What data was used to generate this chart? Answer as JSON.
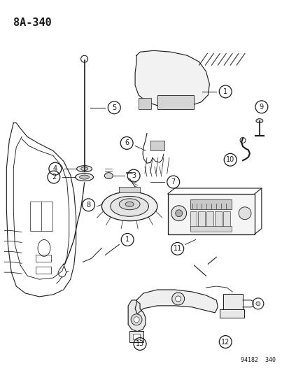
{
  "title": "8A-340",
  "watermark": "94182  340",
  "background": "#ffffff",
  "text_color": "#1a1a1a",
  "fig_width": 4.14,
  "fig_height": 5.33,
  "dpi": 100
}
